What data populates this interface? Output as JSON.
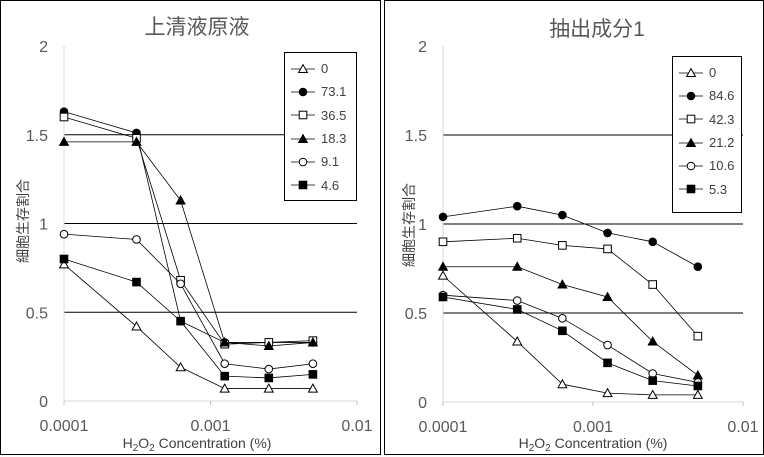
{
  "chart_data": [
    {
      "type": "line",
      "title": "上清液原液",
      "xlabel_parts": [
        "H",
        "2",
        "O",
        "2",
        " Concentration (%)"
      ],
      "ylabel": "細胞生存割合",
      "xscale": "log",
      "xlim": [
        0.0001,
        0.01
      ],
      "ylim": [
        0,
        2
      ],
      "x_ticks": [
        "0.0001",
        "0.001",
        "0.01"
      ],
      "y_ticks": [
        "0",
        "0.5",
        "1",
        "1.5",
        "2"
      ],
      "gridlines_y": [
        0.5,
        1.0,
        1.5
      ],
      "legend_position": "top-right",
      "x": [
        0.0001,
        0.0003125,
        0.000625,
        0.00125,
        0.0025,
        0.005
      ],
      "series": [
        {
          "name": "0",
          "marker": "triangle-open",
          "values": [
            0.77,
            0.42,
            0.19,
            0.07,
            0.07,
            0.07
          ]
        },
        {
          "name": "73.1",
          "marker": "circle-filled",
          "values": [
            1.63,
            1.51,
            0.45,
            0.33,
            0.33,
            0.33
          ]
        },
        {
          "name": "36.5",
          "marker": "square-open",
          "values": [
            1.6,
            1.48,
            0.68,
            0.32,
            0.33,
            0.34
          ]
        },
        {
          "name": "18.3",
          "marker": "triangle-filled",
          "values": [
            1.46,
            1.46,
            1.13,
            0.33,
            0.31,
            0.33
          ]
        },
        {
          "name": "9.1",
          "marker": "circle-open",
          "values": [
            0.94,
            0.91,
            0.66,
            0.21,
            0.18,
            0.21
          ]
        },
        {
          "name": "4.6",
          "marker": "square-filled",
          "values": [
            0.8,
            0.67,
            0.45,
            0.14,
            0.13,
            0.15
          ]
        }
      ]
    },
    {
      "type": "line",
      "title": "抽出成分1",
      "xlabel_parts": [
        "H",
        "2",
        "O",
        "2",
        " Concentration (%)"
      ],
      "ylabel": "細胞生存割合",
      "xscale": "log",
      "xlim": [
        0.0001,
        0.01
      ],
      "ylim": [
        0,
        2
      ],
      "x_ticks": [
        "0.0001",
        "0.001",
        "0.01"
      ],
      "y_ticks": [
        "0",
        "0.5",
        "1",
        "1.5",
        "2"
      ],
      "gridlines_y": [
        0.5,
        1.0,
        1.5
      ],
      "legend_position": "top-right",
      "x": [
        0.0001,
        0.0003125,
        0.000625,
        0.00125,
        0.0025,
        0.005
      ],
      "series": [
        {
          "name": "0",
          "marker": "triangle-open",
          "values": [
            0.71,
            0.34,
            0.1,
            0.05,
            0.04,
            0.04
          ]
        },
        {
          "name": "84.6",
          "marker": "circle-filled",
          "values": [
            1.04,
            1.1,
            1.05,
            0.95,
            0.9,
            0.76
          ]
        },
        {
          "name": "42.3",
          "marker": "square-open",
          "values": [
            0.9,
            0.92,
            0.88,
            0.86,
            0.66,
            0.37
          ]
        },
        {
          "name": "21.2",
          "marker": "triangle-filled",
          "values": [
            0.76,
            0.76,
            0.66,
            0.59,
            0.34,
            0.15
          ]
        },
        {
          "name": "10.6",
          "marker": "circle-open",
          "values": [
            0.6,
            0.57,
            0.47,
            0.32,
            0.16,
            0.11
          ]
        },
        {
          "name": "5.3",
          "marker": "square-filled",
          "values": [
            0.59,
            0.52,
            0.4,
            0.22,
            0.12,
            0.09
          ]
        }
      ]
    }
  ]
}
